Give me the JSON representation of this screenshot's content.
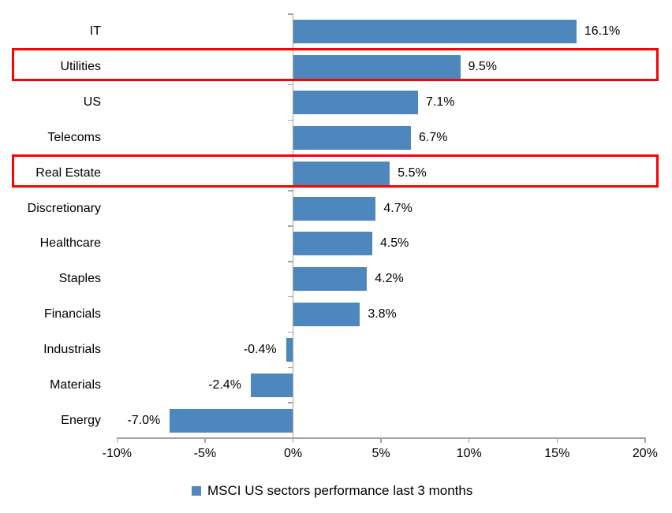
{
  "chart_data": {
    "type": "bar",
    "orientation": "horizontal",
    "title": "",
    "legend": "MSCI US sectors performance last 3 months",
    "legend_position": "bottom",
    "categories": [
      "IT",
      "Utilities",
      "US",
      "Telecoms",
      "Real Estate",
      "Discretionary",
      "Healthcare",
      "Staples",
      "Financials",
      "Industrials",
      "Materials",
      "Energy"
    ],
    "values": [
      16.1,
      9.5,
      7.1,
      6.7,
      5.5,
      4.7,
      4.5,
      4.2,
      3.8,
      -0.4,
      -2.4,
      -7.0
    ],
    "value_labels": [
      "16.1%",
      "9.5%",
      "7.1%",
      "6.7%",
      "5.5%",
      "4.7%",
      "4.5%",
      "4.2%",
      "3.8%",
      "-0.4%",
      "-2.4%",
      "-7.0%"
    ],
    "highlighted_categories": [
      "Utilities",
      "Real Estate"
    ],
    "x_ticks": [
      {
        "label": "-10%",
        "value": -10
      },
      {
        "label": "-5%",
        "value": -5
      },
      {
        "label": "0%",
        "value": 0
      },
      {
        "label": "5%",
        "value": 5
      },
      {
        "label": "10%",
        "value": 10
      },
      {
        "label": "15%",
        "value": 15
      },
      {
        "label": "20%",
        "value": 20
      }
    ],
    "xlim": [
      -10,
      20
    ],
    "grid": "off",
    "colors": {
      "bar": "#4e86be",
      "highlight_border": "#fe0000",
      "axis": "#a3a3a3",
      "text": "#000000",
      "background": "#ffffff"
    }
  }
}
